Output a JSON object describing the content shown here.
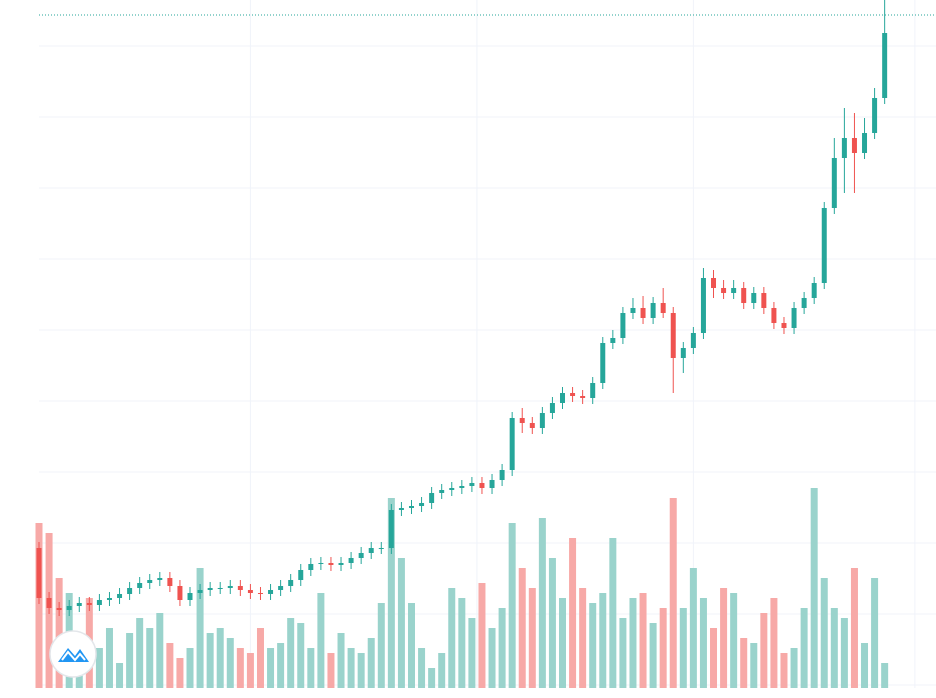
{
  "chart_data": {
    "type": "candlestick",
    "x": [
      0,
      1,
      2,
      3,
      4,
      5,
      6,
      7,
      8,
      9,
      10,
      11,
      12,
      13,
      14,
      15,
      16,
      17,
      18,
      19,
      20,
      21,
      22,
      23,
      24,
      25,
      26,
      27,
      28,
      29,
      30,
      31,
      32,
      33,
      34,
      35,
      36,
      37,
      38,
      39,
      40,
      41,
      42,
      43,
      44,
      45,
      46,
      47,
      48,
      49,
      50,
      51,
      52,
      53,
      54,
      55,
      56,
      57,
      58,
      59,
      60,
      61,
      62,
      63,
      64,
      65,
      66,
      67,
      68,
      69,
      70,
      71,
      72,
      73,
      74,
      75,
      76,
      77,
      78,
      79,
      80,
      81,
      82,
      83,
      84
    ],
    "open": [
      150,
      100,
      90,
      88,
      92,
      95,
      93,
      98,
      100,
      104,
      110,
      115,
      118,
      120,
      112,
      98,
      105,
      108,
      110,
      110,
      112,
      108,
      105,
      104,
      108,
      112,
      118,
      128,
      134,
      135,
      133,
      135,
      140,
      145,
      150,
      150,
      188,
      190,
      192,
      195,
      205,
      208,
      210,
      212,
      215,
      210,
      218,
      228,
      280,
      275,
      270,
      285,
      295,
      305,
      302,
      300,
      315,
      355,
      360,
      385,
      390,
      380,
      395,
      385,
      340,
      350,
      365,
      420,
      410,
      405,
      410,
      395,
      405,
      390,
      375,
      370,
      390,
      400,
      415,
      490,
      540,
      560,
      545,
      565,
      600
    ],
    "high": [
      156,
      106,
      96,
      98,
      101,
      101,
      104,
      106,
      110,
      116,
      121,
      124,
      126,
      126,
      118,
      111,
      114,
      116,
      116,
      118,
      118,
      114,
      111,
      114,
      118,
      124,
      134,
      140,
      141,
      141,
      141,
      146,
      151,
      156,
      156,
      194,
      196,
      198,
      201,
      211,
      214,
      216,
      218,
      221,
      221,
      224,
      234,
      286,
      290,
      281,
      291,
      301,
      311,
      311,
      308,
      321,
      361,
      368,
      391,
      400,
      402,
      401,
      410,
      391,
      356,
      371,
      430,
      428,
      418,
      418,
      416,
      411,
      411,
      396,
      381,
      396,
      406,
      421,
      496,
      560,
      590,
      585,
      580,
      610,
      698
    ],
    "low": [
      94,
      84,
      82,
      82,
      86,
      87,
      87,
      92,
      94,
      98,
      104,
      109,
      112,
      106,
      92,
      92,
      99,
      102,
      104,
      104,
      102,
      99,
      98,
      98,
      102,
      106,
      112,
      122,
      128,
      127,
      127,
      129,
      134,
      139,
      144,
      144,
      182,
      184,
      186,
      189,
      199,
      202,
      204,
      206,
      204,
      204,
      212,
      222,
      265,
      264,
      264,
      279,
      289,
      296,
      294,
      294,
      309,
      349,
      354,
      379,
      374,
      374,
      380,
      305,
      325,
      344,
      359,
      400,
      399,
      399,
      389,
      389,
      384,
      369,
      364,
      364,
      384,
      394,
      409,
      484,
      505,
      505,
      539,
      559,
      594
    ],
    "close": [
      100,
      90,
      88,
      92,
      95,
      93,
      98,
      100,
      104,
      110,
      115,
      118,
      120,
      112,
      98,
      105,
      108,
      110,
      110,
      112,
      108,
      105,
      104,
      108,
      112,
      118,
      128,
      134,
      135,
      133,
      135,
      140,
      145,
      150,
      150,
      188,
      190,
      192,
      195,
      205,
      208,
      210,
      212,
      215,
      210,
      218,
      228,
      280,
      275,
      270,
      285,
      295,
      305,
      302,
      300,
      315,
      355,
      360,
      385,
      390,
      380,
      395,
      385,
      340,
      350,
      365,
      420,
      410,
      405,
      410,
      395,
      405,
      390,
      375,
      370,
      390,
      400,
      415,
      490,
      540,
      560,
      545,
      565,
      600,
      665
    ],
    "volume": [
      165,
      155,
      110,
      95,
      40,
      90,
      40,
      60,
      25,
      55,
      70,
      60,
      75,
      45,
      30,
      40,
      120,
      55,
      60,
      50,
      40,
      35,
      60,
      40,
      45,
      70,
      65,
      40,
      95,
      35,
      55,
      40,
      35,
      50,
      85,
      190,
      130,
      85,
      40,
      20,
      35,
      100,
      90,
      70,
      105,
      60,
      80,
      165,
      120,
      100,
      170,
      130,
      90,
      150,
      100,
      85,
      95,
      150,
      70,
      90,
      95,
      65,
      80,
      190,
      80,
      120,
      90,
      60,
      100,
      95,
      50,
      45,
      75,
      90,
      35,
      40,
      80,
      200,
      110,
      80,
      70,
      120,
      45,
      110,
      25
    ],
    "up_color": "#26a69a",
    "down_color": "#ef5350",
    "volume_up_color": "#9ad3cc",
    "volume_down_color": "#f7a9a7",
    "xlim": [
      0,
      89.1
    ],
    "xticks": [
      21,
      43.5,
      65,
      87
    ],
    "ylim": [
      10,
      698
    ],
    "yticks": [
      13,
      84,
      155,
      226,
      297,
      368,
      439,
      510,
      581,
      652
    ],
    "grid": true,
    "price_line": 683
  }
}
